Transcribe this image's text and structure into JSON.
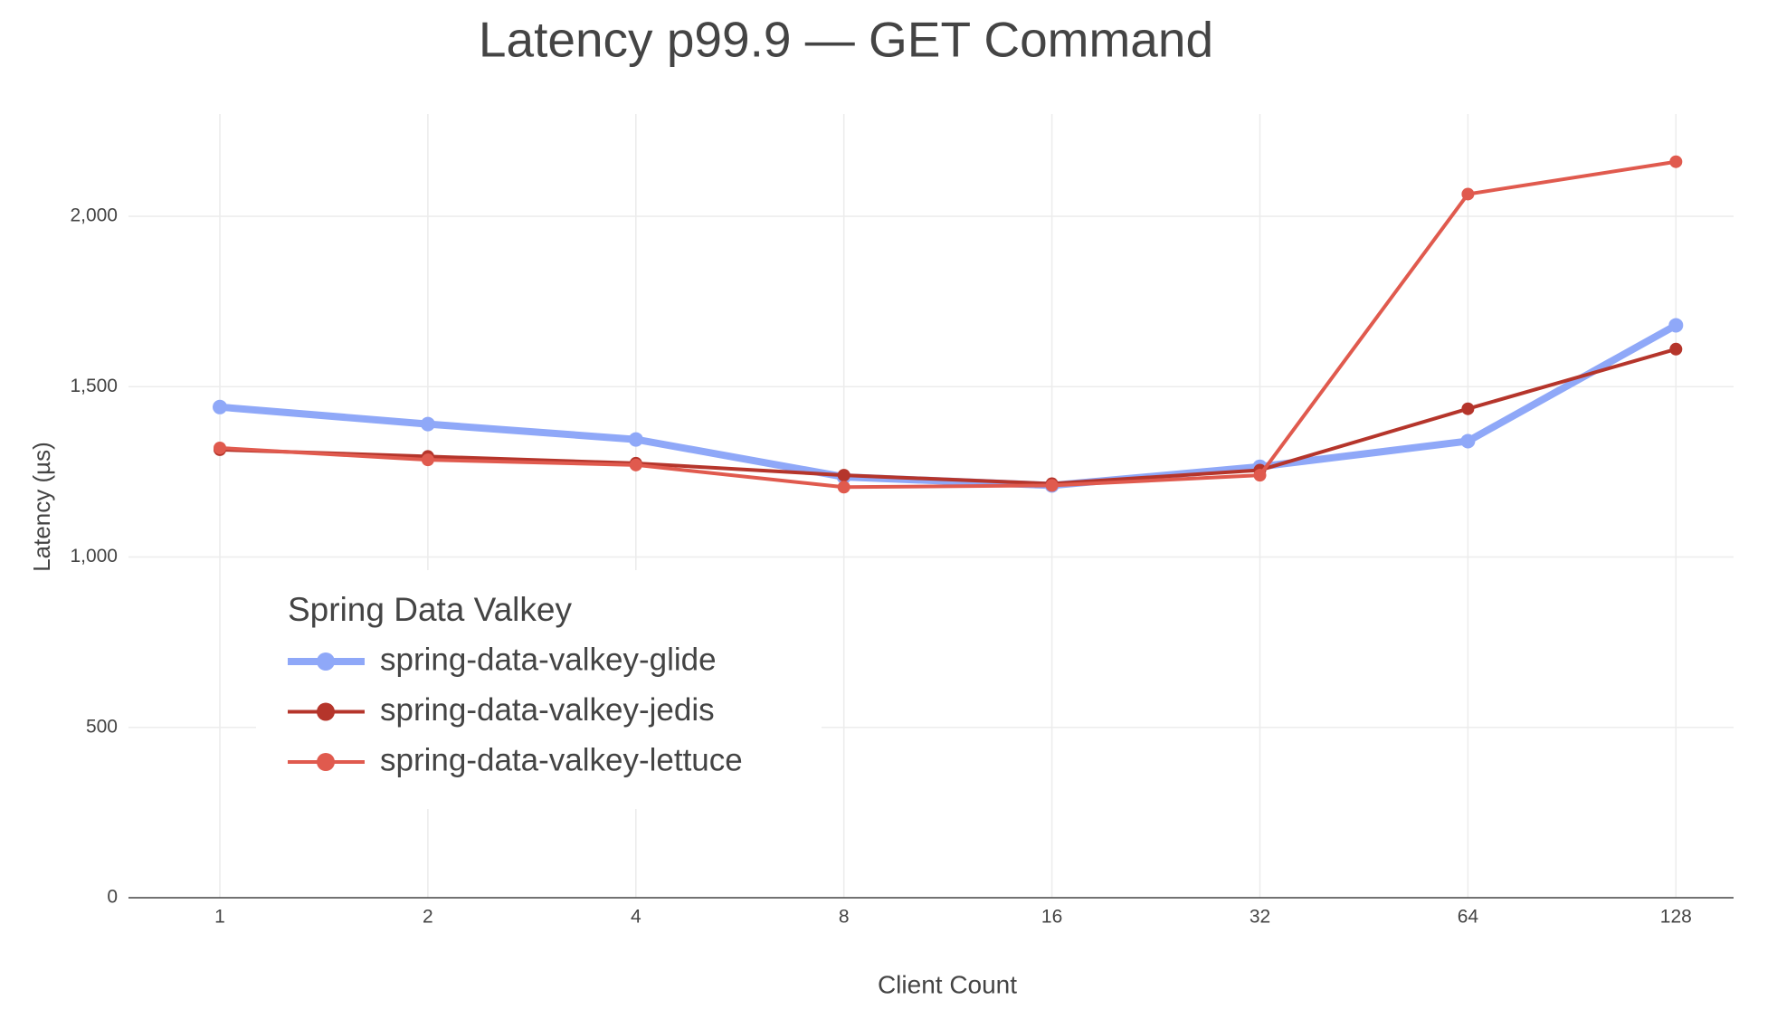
{
  "chart_data": {
    "type": "line",
    "title": "Latency p99.9 — GET Command",
    "x_label": "Client Count",
    "y_label": "Latency (µs)",
    "categories": [
      "1",
      "2",
      "4",
      "8",
      "16",
      "32",
      "64",
      "128"
    ],
    "series": [
      {
        "name": "spring-data-valkey-glide",
        "color": "#8fa8f8",
        "width": 8,
        "values": [
          1440,
          1390,
          1345,
          1235,
          1210,
          1265,
          1340,
          1680
        ]
      },
      {
        "name": "spring-data-valkey-jedis",
        "color": "#b5352b",
        "width": 4,
        "values": [
          1315,
          1295,
          1275,
          1240,
          1215,
          1255,
          1435,
          1610
        ]
      },
      {
        "name": "spring-data-valkey-lettuce",
        "color": "#e05a4e",
        "width": 4,
        "values": [
          1320,
          1285,
          1270,
          1205,
          1210,
          1240,
          2065,
          2160
        ]
      }
    ],
    "ylim": [
      0,
      2300
    ],
    "yticks": [
      0,
      500,
      {
        "value": 1000,
        "label": "1,000"
      },
      {
        "value": 1500,
        "label": "1,500"
      },
      {
        "value": 2000,
        "label": "2,000"
      }
    ],
    "grid": true,
    "legend_title": "Spring Data Valkey",
    "legend_position": "lower left"
  }
}
